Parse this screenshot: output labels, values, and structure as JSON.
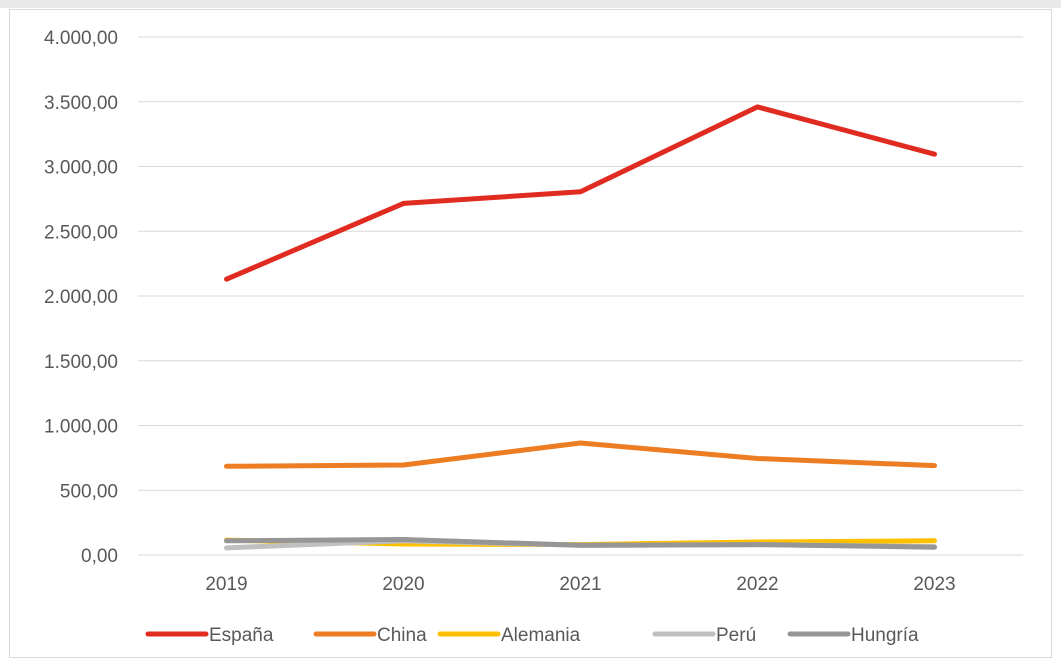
{
  "chart_data": {
    "type": "line",
    "categories": [
      "2019",
      "2020",
      "2021",
      "2022",
      "2023"
    ],
    "ylim": [
      0,
      4000
    ],
    "y_ticks": [
      0,
      500,
      1000,
      1500,
      2000,
      2500,
      3000,
      3500,
      4000
    ],
    "y_tick_labels": [
      "0,00",
      "500,00",
      "1.000,00",
      "1.500,00",
      "2.000,00",
      "2.500,00",
      "3.000,00",
      "3.500,00",
      "4.000,00"
    ],
    "grid": "horizontal",
    "legend_placement": "bottom",
    "series": [
      {
        "name": "España",
        "color": "#e02b20",
        "values": [
          2130,
          2715,
          2805,
          3460,
          3095
        ]
      },
      {
        "name": "China",
        "color": "#ed7d22",
        "values": [
          685,
          695,
          865,
          745,
          690
        ]
      },
      {
        "name": "Alemania",
        "color": "#ffc000",
        "values": [
          115,
          85,
          80,
          100,
          110
        ]
      },
      {
        "name": "Perú",
        "color": "#c0c0c0",
        "values": [
          55,
          110,
          75,
          80,
          65
        ]
      },
      {
        "name": "Hungría",
        "color": "#969696",
        "values": [
          110,
          120,
          75,
          80,
          60
        ]
      }
    ]
  }
}
